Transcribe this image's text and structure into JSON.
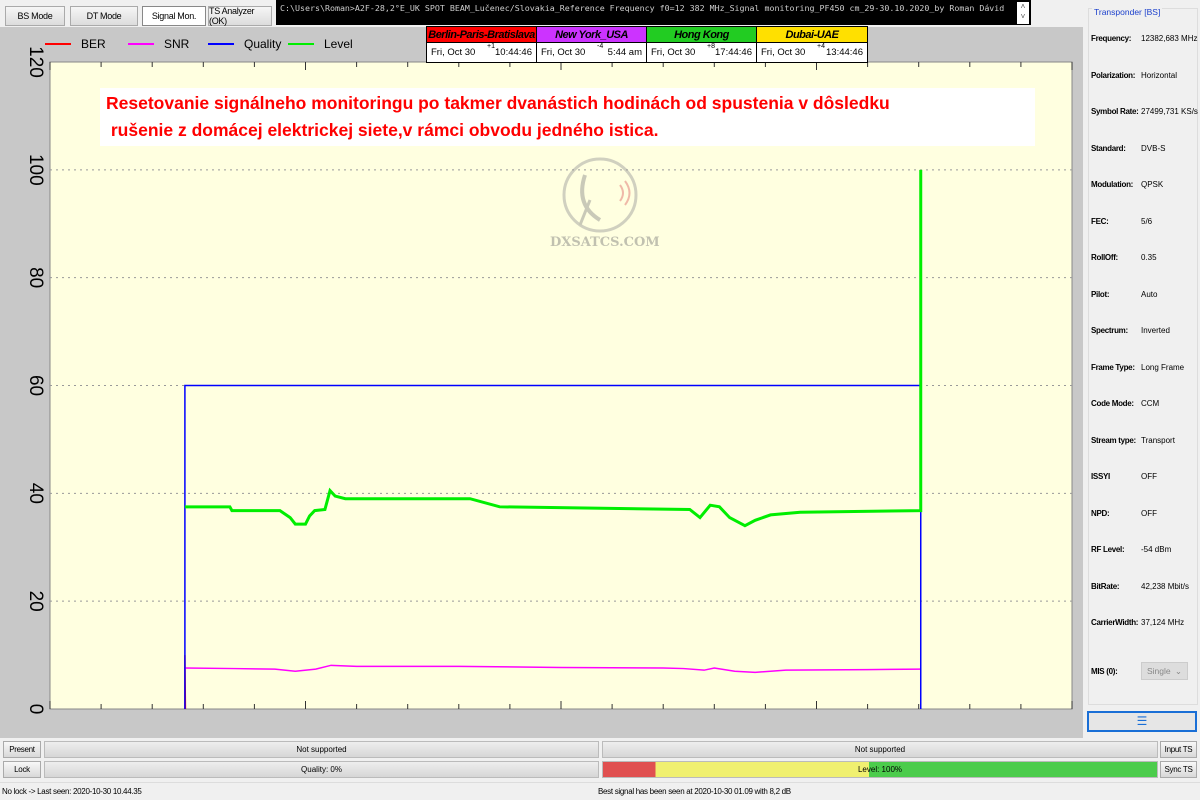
{
  "tabs": [
    {
      "label": "BS Mode"
    },
    {
      "label": "DT Mode"
    },
    {
      "label": "Signal Mon.",
      "active": true
    },
    {
      "label": "TS Analyzer (OK)"
    }
  ],
  "command_line": "C:\\Users\\Roman>A2F-28,2°E_UK SPOT BEAM_Lučenec/Slovakia_Reference Frequency f0=12 382 MHz_Signal monitoring_PF450 cm_29-30.10.2020_by Roman Dávid",
  "clocks": [
    {
      "city": "Berlin-Paris-Bratislava",
      "date": "Fri, Oct 30",
      "offset": "+1",
      "time": "10:44:46",
      "color": "#ff0000"
    },
    {
      "city": "New York_USA",
      "date": "Fri, Oct 30",
      "offset": "-4",
      "time": "5:44 am",
      "color": "#cc33ff"
    },
    {
      "city": "Hong Kong",
      "date": "Fri, Oct 30",
      "offset": "+8",
      "time": "17:44:46",
      "color": "#22cc22"
    },
    {
      "city": "Dubai-UAE",
      "date": "Fri, Oct 30",
      "offset": "+4",
      "time": "13:44:46",
      "color": "#ffe000"
    }
  ],
  "annotation": {
    "line1": "Resetovanie signálneho monitoringu po takmer dvanástich hodinách od spustenia v dôsledku",
    "line2": " rušenie z domácej elektrickej siete,v rámci obvodu jedného istica."
  },
  "watermark": "DXSATCS.COM",
  "chart_data": {
    "type": "line",
    "ylim": [
      0,
      120
    ],
    "xlim": [
      0,
      100
    ],
    "yticks": [
      "0",
      "20",
      "40",
      "60",
      "80",
      "100",
      "120"
    ],
    "grid": true,
    "legend": "top-left",
    "series": [
      {
        "name": "BER",
        "color": "#ff0000",
        "points": [
          [
            13.2,
            0
          ],
          [
            13.2,
            10
          ],
          [
            13.25,
            0
          ]
        ]
      },
      {
        "name": "SNR",
        "color": "#ff00ff",
        "points": [
          [
            13.2,
            7.6
          ],
          [
            18,
            7.5
          ],
          [
            22,
            7.4
          ],
          [
            24,
            7.0
          ],
          [
            26,
            7.4
          ],
          [
            27.5,
            8.1
          ],
          [
            30,
            7.9
          ],
          [
            40,
            7.9
          ],
          [
            50,
            7.7
          ],
          [
            60,
            7.6
          ],
          [
            62,
            7.5
          ],
          [
            64,
            7.2
          ],
          [
            65,
            7.6
          ],
          [
            67,
            7.0
          ],
          [
            69,
            6.8
          ],
          [
            72,
            7.2
          ],
          [
            80,
            7.3
          ],
          [
            85.2,
            7.4
          ]
        ]
      },
      {
        "name": "Quality",
        "color": "#0000ff",
        "points": [
          [
            13.2,
            0
          ],
          [
            13.2,
            60
          ],
          [
            85.2,
            60
          ],
          [
            85.2,
            0
          ]
        ]
      },
      {
        "name": "Level",
        "color": "#00ee00",
        "points": [
          [
            13.2,
            37.5
          ],
          [
            17.6,
            37.5
          ],
          [
            17.8,
            36.8
          ],
          [
            22.5,
            36.8
          ],
          [
            23.5,
            35.5
          ],
          [
            24,
            34.3
          ],
          [
            25,
            34.3
          ],
          [
            25.4,
            35.8
          ],
          [
            25.9,
            36.8
          ],
          [
            26.9,
            37
          ],
          [
            27.4,
            40.5
          ],
          [
            27.9,
            39.5
          ],
          [
            28.9,
            39
          ],
          [
            41.1,
            39
          ],
          [
            44,
            37.5
          ],
          [
            62.6,
            37
          ],
          [
            63.6,
            35.5
          ],
          [
            64.6,
            37.8
          ],
          [
            65.5,
            37.5
          ],
          [
            66.5,
            35.5
          ],
          [
            68,
            34
          ],
          [
            69,
            35
          ],
          [
            70.5,
            36
          ],
          [
            73.4,
            36.5
          ],
          [
            85.2,
            36.8
          ],
          [
            85.2,
            100
          ]
        ]
      }
    ]
  },
  "transponder": {
    "title": "Transponder [BS]",
    "fields": [
      {
        "label": "Frequency:",
        "value": "12382,683 MHz"
      },
      {
        "label": "Polarization:",
        "value": "Horizontal"
      },
      {
        "label": "Symbol Rate:",
        "value": "27499,731 KS/s"
      },
      {
        "label": "Standard:",
        "value": "DVB-S"
      },
      {
        "label": "Modulation:",
        "value": "QPSK"
      },
      {
        "label": "FEC:",
        "value": "5/6"
      },
      {
        "label": "RollOff:",
        "value": "0.35"
      },
      {
        "label": "Pilot:",
        "value": "Auto"
      },
      {
        "label": "Spectrum:",
        "value": "Inverted"
      },
      {
        "label": "Frame Type:",
        "value": "Long Frame"
      },
      {
        "label": "Code Mode:",
        "value": "CCM"
      },
      {
        "label": "Stream type:",
        "value": "Transport"
      },
      {
        "label": "ISSYI",
        "value": "OFF"
      },
      {
        "label": "NPD:",
        "value": "OFF"
      },
      {
        "label": "RF Level:",
        "value": "-54 dBm"
      },
      {
        "label": "BitRate:",
        "value": "42,238 Mbit/s"
      },
      {
        "label": "CarrierWidth:",
        "value": "37,124 MHz"
      }
    ],
    "mis_label": "MIS (0):",
    "mis_value": "Single"
  },
  "bottom": {
    "present": "Present",
    "lock": "Lock",
    "input_ts": "Input TS",
    "sync_ts": "Sync TS",
    "bar1": "Not supported",
    "bar2": "Not supported",
    "quality": "Quality: 0%",
    "level": "Level: 100%",
    "level_percent": 100,
    "quality_percent": 0,
    "status_left": "No lock -> Last seen: 2020-10-30 10.44.35",
    "status_right": "Best signal has been seen at 2020-10-30 01.09 with 8,2 dB"
  }
}
